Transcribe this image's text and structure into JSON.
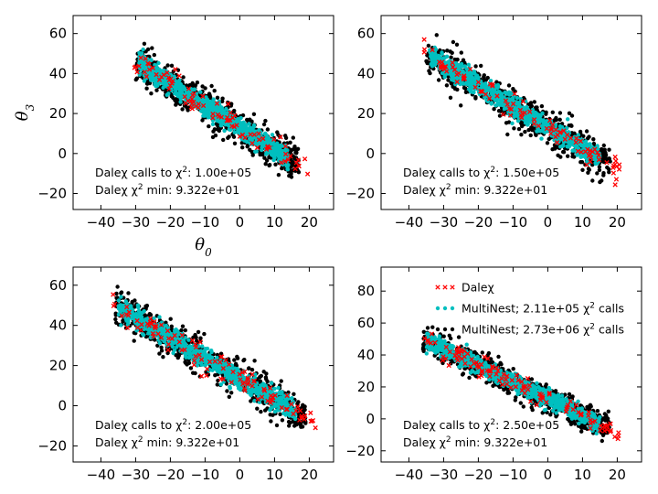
{
  "chart_data": [
    {
      "type": "scatter",
      "panel": "top-left",
      "xlabel": "θ0",
      "ylabel": "θ3",
      "xlim": [
        -48,
        27
      ],
      "ylim": [
        -28,
        69
      ],
      "xticks": [
        -40,
        -30,
        -20,
        -10,
        0,
        10,
        20
      ],
      "yticks": [
        -20,
        0,
        20,
        40,
        60
      ],
      "annotations": [
        "Daleχ calls to χ²: 1.00e+05",
        "Daleχ χ² min: 9.322e+01"
      ],
      "distribution": {
        "x_range": [
          -31,
          20
        ],
        "y_at_xmin": 47,
        "y_at_xmax": -9,
        "band_width": 8
      }
    },
    {
      "type": "scatter",
      "panel": "top-right",
      "xlim": [
        -48,
        27
      ],
      "ylim": [
        -28,
        69
      ],
      "xticks": [
        -40,
        -30,
        -20,
        -10,
        0,
        10,
        20
      ],
      "yticks": [
        -20,
        0,
        20,
        40,
        60
      ],
      "annotations": [
        "Daleχ calls to χ²: 1.50e+05",
        "Daleχ χ² min: 9.322e+01"
      ],
      "distribution": {
        "x_range": [
          -36,
          21
        ],
        "y_at_xmin": 51,
        "y_at_xmax": -9,
        "band_width": 8
      }
    },
    {
      "type": "scatter",
      "panel": "bottom-left",
      "xlim": [
        -48,
        27
      ],
      "ylim": [
        -28,
        69
      ],
      "xticks": [
        -40,
        -30,
        -20,
        -10,
        0,
        10,
        20
      ],
      "yticks": [
        -20,
        0,
        20,
        40,
        60
      ],
      "annotations": [
        "Daleχ calls to χ²: 2.00e+05",
        "Daleχ χ² min: 9.322e+01"
      ],
      "distribution": {
        "x_range": [
          -37,
          22
        ],
        "y_at_xmin": 51,
        "y_at_xmax": -9,
        "band_width": 8
      }
    },
    {
      "type": "scatter",
      "panel": "bottom-right",
      "xlim": [
        -48,
        27
      ],
      "ylim": [
        -27,
        95
      ],
      "xticks": [
        -40,
        -30,
        -20,
        -10,
        0,
        10,
        20
      ],
      "yticks": [
        -20,
        0,
        20,
        40,
        60,
        80
      ],
      "annotations": [
        "Daleχ calls to χ²: 2.50e+05",
        "Daleχ χ² min: 9.322e+01"
      ],
      "legend": {
        "location": "upper right",
        "entries": [
          "Daleχ",
          "MultiNest; 2.11e+05 χ² calls",
          "MultiNest; 2.73e+06 χ² calls"
        ]
      },
      "distribution": {
        "x_range": [
          -37,
          21
        ],
        "y_at_xmin": 51,
        "y_at_xmax": -9,
        "band_width": 8
      }
    }
  ],
  "series": [
    {
      "name": "Daleχ",
      "color": "#ff0000",
      "marker": "x"
    },
    {
      "name": "MultiNest; 2.11e+05 χ² calls",
      "color": "#00bfbf",
      "marker": "o"
    },
    {
      "name": "MultiNest; 2.73e+06 χ² calls",
      "color": "#000000",
      "marker": "o"
    }
  ]
}
